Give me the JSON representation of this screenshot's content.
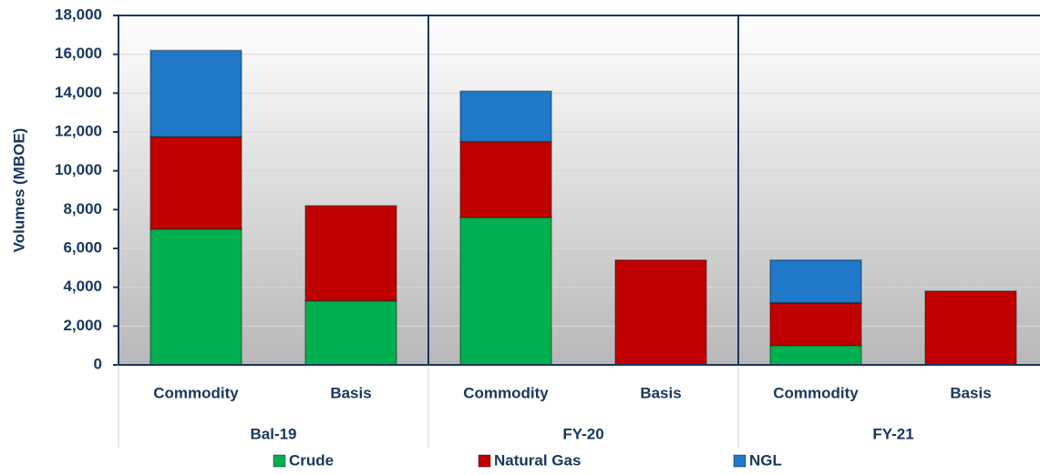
{
  "chart_data": {
    "type": "bar",
    "stacked": true,
    "y_label": "Volumes (MBOE)",
    "groups": [
      "Bal-19",
      "FY-20",
      "FY-21"
    ],
    "categories": [
      "Commodity",
      "Basis",
      "Commodity",
      "Basis",
      "Commodity",
      "Basis"
    ],
    "series": [
      {
        "name": "Crude",
        "color": "#00b050",
        "values": [
          7000,
          3300,
          7600,
          0,
          1000,
          0
        ]
      },
      {
        "name": "Natural Gas",
        "color": "#c00000",
        "values": [
          4750,
          4900,
          3900,
          5400,
          2200,
          3800
        ]
      },
      {
        "name": "NGL",
        "color": "#1f78c8",
        "values": [
          4450,
          0,
          2600,
          0,
          2200,
          0
        ]
      }
    ],
    "ylim": [
      0,
      18000
    ],
    "yticks": [
      0,
      {
        "value": 2000,
        "label": "2,000"
      },
      {
        "value": 4000,
        "label": "4,000"
      },
      {
        "value": 6000,
        "label": "6,000"
      },
      {
        "value": 8000,
        "label": "8,000"
      },
      {
        "value": 10000,
        "label": "10,000"
      },
      {
        "value": 12000,
        "label": "12,000"
      },
      {
        "value": 14000,
        "label": "14,000"
      },
      {
        "value": 16000,
        "label": "16,000"
      },
      {
        "value": 18000,
        "label": "18,000"
      }
    ],
    "grid": true,
    "legend": "bottom"
  }
}
